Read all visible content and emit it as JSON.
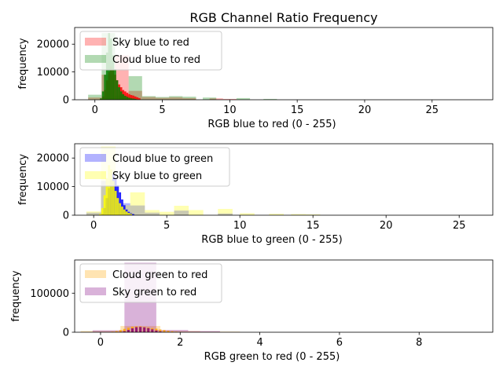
{
  "title": "RGB Channel Ratio Frequency",
  "chart_data": [
    {
      "type": "histogram",
      "xlabel": "RGB blue to red (0 - 255)",
      "ylabel": "frequency",
      "xlim": [
        -1.5,
        29.5
      ],
      "ylim": [
        0,
        26000
      ],
      "xticks": [
        0,
        5,
        10,
        15,
        20,
        25
      ],
      "yticks": [
        0,
        10000,
        20000
      ],
      "legend_position": "upper-left",
      "series": [
        {
          "name": "Sky blue to red",
          "color": "#ff0000",
          "dense": {
            "width": 0.15,
            "points": [
              [
                0.45,
                300
              ],
              [
                0.6,
                1200
              ],
              [
                0.75,
                3500
              ],
              [
                0.9,
                7000
              ],
              [
                1.05,
                10000
              ],
              [
                1.2,
                12000
              ],
              [
                1.35,
                11000
              ],
              [
                1.5,
                9000
              ],
              [
                1.65,
                7000
              ],
              [
                1.8,
                5500
              ],
              [
                1.95,
                4500
              ],
              [
                2.1,
                3500
              ],
              [
                2.25,
                3000
              ],
              [
                2.4,
                2500
              ],
              [
                2.55,
                2000
              ],
              [
                2.7,
                1700
              ],
              [
                2.85,
                1500
              ],
              [
                3.0,
                1200
              ],
              [
                3.15,
                900
              ],
              [
                3.3,
                600
              ]
            ]
          },
          "overlay": {
            "width": 1.0,
            "points": [
              [
                0.0,
                800
              ],
              [
                1.0,
                9000
              ],
              [
                2.0,
                16000
              ],
              [
                3.0,
                3200
              ],
              [
                4.0,
                1000
              ],
              [
                5.0,
                700
              ],
              [
                6.0,
                900
              ],
              [
                7.0,
                600
              ],
              [
                9.0,
                500
              ],
              [
                10.0,
                300
              ]
            ]
          }
        },
        {
          "name": "Cloud blue to red",
          "color": "#008000",
          "dense": {
            "width": 0.15,
            "points": [
              [
                0.45,
                500
              ],
              [
                0.6,
                3000
              ],
              [
                0.75,
                9000
              ],
              [
                0.9,
                17000
              ],
              [
                1.05,
                24000
              ],
              [
                1.2,
                22000
              ],
              [
                1.35,
                16000
              ],
              [
                1.5,
                11000
              ],
              [
                1.65,
                7000
              ],
              [
                1.8,
                4500
              ],
              [
                1.95,
                3000
              ],
              [
                2.1,
                2000
              ],
              [
                2.25,
                1400
              ],
              [
                2.4,
                1000
              ],
              [
                2.55,
                700
              ],
              [
                2.7,
                500
              ],
              [
                2.85,
                400
              ],
              [
                3.0,
                300
              ]
            ]
          },
          "overlay": {
            "width": 1.0,
            "points": [
              [
                0.0,
                1800
              ],
              [
                1.0,
                24000
              ],
              [
                2.0,
                1500
              ],
              [
                3.0,
                8500
              ],
              [
                4.0,
                1300
              ],
              [
                5.0,
                1000
              ],
              [
                6.0,
                1300
              ],
              [
                7.0,
                1100
              ],
              [
                8.5,
                800
              ],
              [
                11.0,
                600
              ],
              [
                13.0,
                300
              ]
            ]
          }
        }
      ]
    },
    {
      "type": "histogram",
      "xlabel": "RGB blue to green (0 - 255)",
      "ylabel": "frequency",
      "xlim": [
        -1.3,
        27.3
      ],
      "ylim": [
        0,
        25000
      ],
      "xticks": [
        0,
        5,
        10,
        15,
        20,
        25
      ],
      "yticks": [
        0,
        10000,
        20000
      ],
      "legend_position": "upper-left",
      "series": [
        {
          "name": "Cloud blue to green",
          "color": "#0000ff",
          "dense": {
            "width": 0.15,
            "points": [
              [
                0.6,
                500
              ],
              [
                0.75,
                2500
              ],
              [
                0.9,
                6000
              ],
              [
                1.05,
                9500
              ],
              [
                1.2,
                12500
              ],
              [
                1.35,
                14500
              ],
              [
                1.5,
                13000
              ],
              [
                1.65,
                10500
              ],
              [
                1.8,
                8000
              ],
              [
                1.95,
                5500
              ],
              [
                2.1,
                3500
              ],
              [
                2.25,
                2000
              ],
              [
                2.4,
                1200
              ],
              [
                2.55,
                700
              ],
              [
                2.7,
                400
              ]
            ]
          },
          "overlay": {
            "width": 1.0,
            "points": [
              [
                0.0,
                900
              ],
              [
                1.0,
                12000
              ],
              [
                2.0,
                4200
              ],
              [
                3.0,
                3400
              ],
              [
                4.0,
                900
              ],
              [
                6.0,
                1600
              ],
              [
                9.0,
                600
              ]
            ]
          }
        },
        {
          "name": "Sky blue to green",
          "color": "#ffff00",
          "dense": {
            "width": 0.15,
            "points": [
              [
                0.45,
                400
              ],
              [
                0.6,
                2500
              ],
              [
                0.75,
                7000
              ],
              [
                0.9,
                13000
              ],
              [
                1.05,
                17500
              ],
              [
                1.2,
                16000
              ],
              [
                1.35,
                12000
              ],
              [
                1.5,
                8500
              ],
              [
                1.65,
                6000
              ],
              [
                1.8,
                4200
              ],
              [
                1.95,
                3000
              ],
              [
                2.1,
                2000
              ],
              [
                2.25,
                1300
              ],
              [
                2.4,
                800
              ],
              [
                2.55,
                500
              ]
            ]
          },
          "overlay": {
            "width": 1.0,
            "points": [
              [
                0.0,
                1300
              ],
              [
                1.0,
                24000
              ],
              [
                2.0,
                3500
              ],
              [
                3.0,
                8000
              ],
              [
                4.0,
                1800
              ],
              [
                5.0,
                1200
              ],
              [
                6.0,
                3300
              ],
              [
                7.0,
                1800
              ],
              [
                9.0,
                2200
              ],
              [
                10.5,
                700
              ],
              [
                12.5,
                500
              ],
              [
                14.0,
                400
              ],
              [
                15.0,
                300
              ]
            ]
          }
        }
      ]
    },
    {
      "type": "histogram",
      "xlabel": "RGB green to red (0 - 255)",
      "ylabel": "frequency",
      "xlim": [
        -0.65,
        9.85
      ],
      "ylim": [
        0,
        185000
      ],
      "xticks": [
        0,
        2,
        4,
        6,
        8
      ],
      "yticks": [
        0,
        100000
      ],
      "legend_position": "upper-left",
      "series": [
        {
          "name": "Cloud green to red",
          "color": "#ffa500",
          "dense": {
            "width": 0.06,
            "points": [
              [
                0.3,
                1500
              ],
              [
                0.4,
                3000
              ],
              [
                0.5,
                5500
              ],
              [
                0.6,
                8500
              ],
              [
                0.7,
                11500
              ],
              [
                0.8,
                14000
              ],
              [
                0.9,
                15000
              ],
              [
                1.0,
                15000
              ],
              [
                1.1,
                13500
              ],
              [
                1.2,
                12000
              ],
              [
                1.3,
                10500
              ],
              [
                1.4,
                9000
              ],
              [
                1.5,
                7000
              ],
              [
                1.6,
                5500
              ],
              [
                1.7,
                3800
              ],
              [
                1.8,
                2500
              ],
              [
                1.9,
                1500
              ],
              [
                2.0,
                900
              ]
            ]
          },
          "overlay": {
            "width": 1.0,
            "points": [
              [
                0.0,
                3000
              ],
              [
                1.0,
                16000
              ],
              [
                2.0,
                3000
              ],
              [
                3.0,
                1500
              ]
            ]
          }
        },
        {
          "name": "Sky green to red",
          "color": "#800080",
          "dense": {
            "width": 0.06,
            "points": [
              [
                0.5,
                800
              ],
              [
                0.6,
                2500
              ],
              [
                0.7,
                6000
              ],
              [
                0.8,
                10000
              ],
              [
                0.9,
                13000
              ],
              [
                1.0,
                13500
              ],
              [
                1.1,
                12500
              ],
              [
                1.2,
                10500
              ],
              [
                1.3,
                7500
              ],
              [
                1.4,
                4500
              ],
              [
                1.5,
                2200
              ],
              [
                1.6,
                1000
              ]
            ]
          },
          "overlay": {
            "width": 0.8,
            "points": [
              [
                0.2,
                5000
              ],
              [
                1.0,
                178000
              ],
              [
                1.8,
                6000
              ],
              [
                2.6,
                3000
              ]
            ]
          }
        }
      ]
    }
  ]
}
